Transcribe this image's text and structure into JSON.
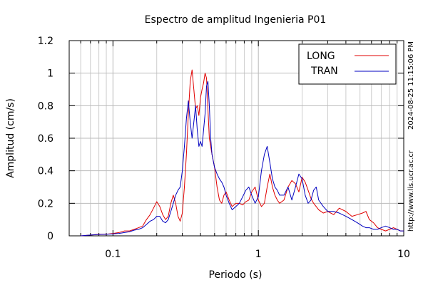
{
  "chart_data": {
    "type": "line",
    "title": "Espectro de amplitud Ingenieria P01",
    "xlabel": "Periodo (s)",
    "ylabel": "Amplitud (cm/s)",
    "xscale": "log",
    "xlim": [
      0.05,
      10
    ],
    "ylim": [
      0,
      1.2
    ],
    "x_tick_labels": [
      "0.1",
      "1",
      "10"
    ],
    "y_tick_labels": [
      "0",
      "0.2",
      "0.4",
      "0.6",
      "0.8",
      "1",
      "1.2"
    ],
    "grid": true,
    "legend_position": "top-right",
    "side_text_top": "2024-08-25 11:15:06 PM",
    "side_text_bottom": "http://www.lis.ucr.ac.cr",
    "series": [
      {
        "name": "LONG",
        "color": "#e00000",
        "x": [
          0.06,
          0.07,
          0.08,
          0.09,
          0.1,
          0.11,
          0.12,
          0.13,
          0.14,
          0.15,
          0.16,
          0.17,
          0.18,
          0.19,
          0.2,
          0.21,
          0.22,
          0.23,
          0.24,
          0.25,
          0.26,
          0.27,
          0.28,
          0.29,
          0.3,
          0.31,
          0.32,
          0.33,
          0.34,
          0.35,
          0.36,
          0.37,
          0.38,
          0.39,
          0.4,
          0.41,
          0.42,
          0.43,
          0.44,
          0.45,
          0.46,
          0.47,
          0.48,
          0.5,
          0.52,
          0.54,
          0.56,
          0.58,
          0.6,
          0.63,
          0.66,
          0.7,
          0.74,
          0.78,
          0.82,
          0.86,
          0.9,
          0.95,
          1.0,
          1.05,
          1.1,
          1.15,
          1.2,
          1.25,
          1.3,
          1.35,
          1.4,
          1.5,
          1.6,
          1.7,
          1.8,
          1.9,
          2.0,
          2.1,
          2.2,
          2.3,
          2.4,
          2.5,
          2.6,
          2.8,
          3.0,
          3.3,
          3.6,
          4.0,
          4.4,
          4.8,
          5.2,
          5.5,
          5.8,
          6.2,
          6.6,
          7.0,
          7.5,
          8.0,
          8.5,
          9.0,
          9.5,
          10.0
        ],
        "y": [
          0.0,
          0.005,
          0.01,
          0.01,
          0.015,
          0.02,
          0.03,
          0.03,
          0.04,
          0.05,
          0.06,
          0.1,
          0.13,
          0.17,
          0.21,
          0.18,
          0.13,
          0.1,
          0.12,
          0.2,
          0.25,
          0.2,
          0.12,
          0.09,
          0.14,
          0.3,
          0.5,
          0.75,
          0.95,
          1.02,
          0.9,
          0.78,
          0.8,
          0.74,
          0.85,
          0.9,
          0.94,
          1.0,
          0.97,
          0.78,
          0.6,
          0.55,
          0.5,
          0.42,
          0.3,
          0.22,
          0.2,
          0.25,
          0.27,
          0.22,
          0.18,
          0.2,
          0.2,
          0.19,
          0.21,
          0.22,
          0.27,
          0.3,
          0.22,
          0.18,
          0.2,
          0.3,
          0.38,
          0.3,
          0.25,
          0.22,
          0.2,
          0.22,
          0.3,
          0.34,
          0.32,
          0.27,
          0.36,
          0.33,
          0.28,
          0.23,
          0.2,
          0.18,
          0.16,
          0.14,
          0.15,
          0.13,
          0.17,
          0.15,
          0.12,
          0.13,
          0.14,
          0.15,
          0.1,
          0.08,
          0.05,
          0.04,
          0.03,
          0.04,
          0.05,
          0.04,
          0.03,
          0.03
        ]
      },
      {
        "name": "TRAN",
        "color": "#0000c0",
        "x": [
          0.06,
          0.07,
          0.08,
          0.09,
          0.1,
          0.11,
          0.12,
          0.13,
          0.14,
          0.15,
          0.16,
          0.17,
          0.18,
          0.19,
          0.2,
          0.21,
          0.22,
          0.23,
          0.24,
          0.25,
          0.26,
          0.27,
          0.28,
          0.29,
          0.3,
          0.31,
          0.32,
          0.33,
          0.34,
          0.35,
          0.36,
          0.37,
          0.38,
          0.39,
          0.4,
          0.41,
          0.42,
          0.43,
          0.44,
          0.45,
          0.46,
          0.47,
          0.48,
          0.5,
          0.52,
          0.54,
          0.56,
          0.58,
          0.6,
          0.63,
          0.66,
          0.7,
          0.74,
          0.78,
          0.82,
          0.86,
          0.9,
          0.95,
          1.0,
          1.05,
          1.1,
          1.15,
          1.2,
          1.25,
          1.3,
          1.35,
          1.4,
          1.5,
          1.6,
          1.7,
          1.8,
          1.9,
          2.0,
          2.1,
          2.2,
          2.3,
          2.4,
          2.5,
          2.6,
          2.8,
          3.0,
          3.3,
          3.6,
          4.0,
          4.4,
          4.8,
          5.2,
          5.5,
          5.8,
          6.2,
          6.6,
          7.0,
          7.5,
          8.0,
          8.5,
          9.0,
          9.5,
          10.0
        ],
        "y": [
          0.0,
          0.005,
          0.008,
          0.01,
          0.012,
          0.015,
          0.02,
          0.025,
          0.035,
          0.04,
          0.05,
          0.07,
          0.09,
          0.1,
          0.12,
          0.12,
          0.09,
          0.08,
          0.1,
          0.15,
          0.2,
          0.25,
          0.28,
          0.3,
          0.4,
          0.55,
          0.72,
          0.83,
          0.7,
          0.6,
          0.7,
          0.8,
          0.65,
          0.55,
          0.58,
          0.55,
          0.65,
          0.75,
          0.92,
          0.95,
          0.8,
          0.6,
          0.5,
          0.42,
          0.38,
          0.35,
          0.33,
          0.3,
          0.25,
          0.2,
          0.16,
          0.18,
          0.2,
          0.24,
          0.28,
          0.3,
          0.25,
          0.2,
          0.24,
          0.4,
          0.5,
          0.55,
          0.45,
          0.35,
          0.3,
          0.28,
          0.25,
          0.25,
          0.3,
          0.22,
          0.3,
          0.38,
          0.35,
          0.25,
          0.2,
          0.22,
          0.28,
          0.3,
          0.22,
          0.18,
          0.15,
          0.15,
          0.14,
          0.12,
          0.1,
          0.08,
          0.06,
          0.05,
          0.05,
          0.04,
          0.04,
          0.05,
          0.06,
          0.05,
          0.04,
          0.04,
          0.03,
          0.03
        ]
      }
    ]
  }
}
